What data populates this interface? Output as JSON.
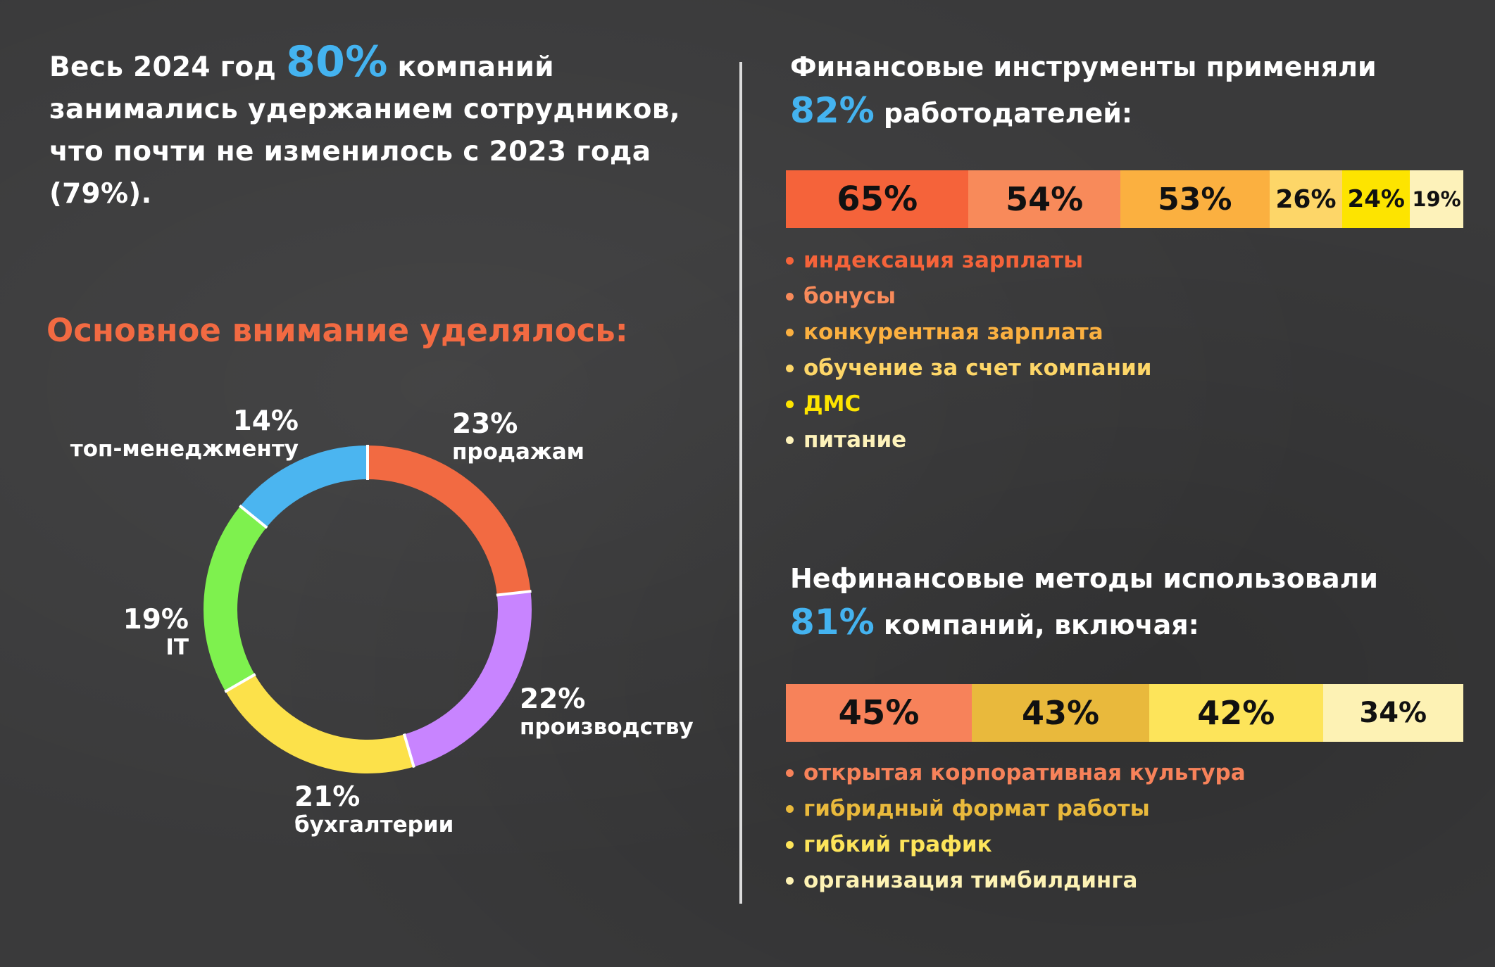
{
  "intro": {
    "before": "Весь 2024 год ",
    "highlight": "80%",
    "after": " компаний занимались удержанием сотрудников, что почти не изменилось с 2023 года (79%)."
  },
  "focus": {
    "title": "Основное внимание уделялось:"
  },
  "financial": {
    "title_line1": "Финансовые инструменты применяли",
    "highlight": "82%",
    "title_rest": " работодателей:"
  },
  "nonfinancial": {
    "title_line1": "Нефинансовые методы использовали",
    "highlight": "81%",
    "title_rest": " компаний, включая:"
  },
  "chart_data": [
    {
      "type": "pie",
      "variant": "donut",
      "title": "Основное внимание уделялось:",
      "start": "top, clockwise",
      "slices": [
        {
          "pct_label": "23%",
          "label": "продажам",
          "value": 23,
          "color": "#f26a42"
        },
        {
          "pct_label": "22%",
          "label": "производству",
          "value": 22,
          "color": "#c884ff"
        },
        {
          "pct_label": "21%",
          "label": "бухгалтерии",
          "value": 21,
          "color": "#fce14a"
        },
        {
          "pct_label": "19%",
          "label": "IT",
          "value": 19,
          "color": "#7ef14e"
        },
        {
          "pct_label": "14%",
          "label": "топ-менеджменту",
          "value": 14,
          "color": "#4bb5f0"
        }
      ]
    },
    {
      "type": "bar",
      "variant": "stacked-horizontal",
      "title": "Финансовые инструменты применяли 82% работодателей:",
      "segments": [
        {
          "pct_label": "65%",
          "label": "индексация зарплаты",
          "value": 65,
          "color": "#f5633a"
        },
        {
          "pct_label": "54%",
          "label": "бонусы",
          "value": 54,
          "color": "#f88a5a"
        },
        {
          "pct_label": "53%",
          "label": "конкурентная зарплата",
          "value": 53,
          "color": "#fbb040"
        },
        {
          "pct_label": "26%",
          "label": "обучение за счет компании",
          "value": 26,
          "color": "#fdd668"
        },
        {
          "pct_label": "24%",
          "label": "ДМС",
          "value": 24,
          "color": "#fde400"
        },
        {
          "pct_label": "19%",
          "label": "питание",
          "value": 19,
          "color": "#fdf2ba"
        }
      ]
    },
    {
      "type": "bar",
      "variant": "stacked-horizontal",
      "title": "Нефинансовые методы использовали 81% компаний, включая:",
      "segments": [
        {
          "pct_label": "45%",
          "label": "открытая корпоративная культура",
          "value": 45,
          "color": "#f7825a"
        },
        {
          "pct_label": "43%",
          "label": "гибридный формат работы",
          "value": 43,
          "color": "#e9b93c"
        },
        {
          "pct_label": "42%",
          "label": "гибкий график",
          "value": 42,
          "color": "#fde45a"
        },
        {
          "pct_label": "34%",
          "label": "организация тимбилдинга",
          "value": 34,
          "color": "#fdf2b4"
        }
      ]
    }
  ]
}
